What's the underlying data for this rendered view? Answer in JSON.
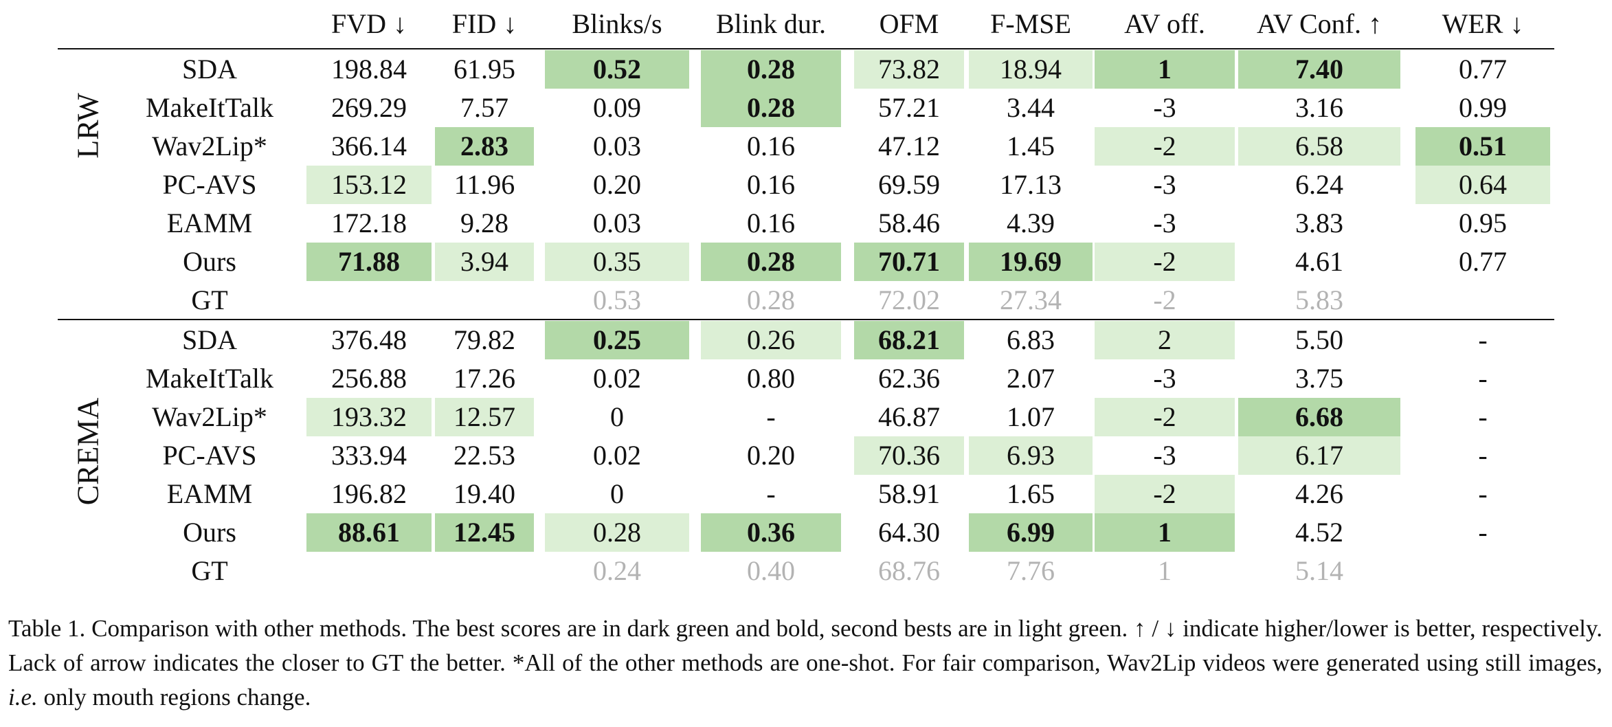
{
  "table": {
    "headers": [
      "",
      "FVD ↓",
      "FID ↓",
      "Blinks/s",
      "Blink dur.",
      "OFM",
      "F-MSE",
      "AV off.",
      "AV Conf. ↑",
      "WER ↓"
    ],
    "groups": [
      {
        "name": "LRW",
        "rows": [
          {
            "method": "SDA",
            "cells": [
              {
                "v": "198.84",
                "h": ""
              },
              {
                "v": "61.95",
                "h": ""
              },
              {
                "v": "0.52",
                "h": "best"
              },
              {
                "v": "0.28",
                "h": "best"
              },
              {
                "v": "73.82",
                "h": "second"
              },
              {
                "v": "18.94",
                "h": "second"
              },
              {
                "v": "1",
                "h": "best"
              },
              {
                "v": "7.40",
                "h": "best"
              },
              {
                "v": "0.77",
                "h": ""
              }
            ]
          },
          {
            "method": "MakeItTalk",
            "cells": [
              {
                "v": "269.29",
                "h": ""
              },
              {
                "v": "7.57",
                "h": ""
              },
              {
                "v": "0.09",
                "h": ""
              },
              {
                "v": "0.28",
                "h": "best"
              },
              {
                "v": "57.21",
                "h": ""
              },
              {
                "v": "3.44",
                "h": ""
              },
              {
                "v": "-3",
                "h": ""
              },
              {
                "v": "3.16",
                "h": ""
              },
              {
                "v": "0.99",
                "h": ""
              }
            ]
          },
          {
            "method": "Wav2Lip*",
            "cells": [
              {
                "v": "366.14",
                "h": ""
              },
              {
                "v": "2.83",
                "h": "best"
              },
              {
                "v": "0.03",
                "h": ""
              },
              {
                "v": "0.16",
                "h": ""
              },
              {
                "v": "47.12",
                "h": ""
              },
              {
                "v": "1.45",
                "h": ""
              },
              {
                "v": "-2",
                "h": "second"
              },
              {
                "v": "6.58",
                "h": "second"
              },
              {
                "v": "0.51",
                "h": "best"
              }
            ]
          },
          {
            "method": "PC-AVS",
            "cells": [
              {
                "v": "153.12",
                "h": "second"
              },
              {
                "v": "11.96",
                "h": ""
              },
              {
                "v": "0.20",
                "h": ""
              },
              {
                "v": "0.16",
                "h": ""
              },
              {
                "v": "69.59",
                "h": ""
              },
              {
                "v": "17.13",
                "h": ""
              },
              {
                "v": "-3",
                "h": ""
              },
              {
                "v": "6.24",
                "h": ""
              },
              {
                "v": "0.64",
                "h": "second"
              }
            ]
          },
          {
            "method": "EAMM",
            "cells": [
              {
                "v": "172.18",
                "h": ""
              },
              {
                "v": "9.28",
                "h": ""
              },
              {
                "v": "0.03",
                "h": ""
              },
              {
                "v": "0.16",
                "h": ""
              },
              {
                "v": "58.46",
                "h": ""
              },
              {
                "v": "4.39",
                "h": ""
              },
              {
                "v": "-3",
                "h": ""
              },
              {
                "v": "3.83",
                "h": ""
              },
              {
                "v": "0.95",
                "h": ""
              }
            ]
          },
          {
            "method": "Ours",
            "cells": [
              {
                "v": "71.88",
                "h": "best"
              },
              {
                "v": "3.94",
                "h": "second"
              },
              {
                "v": "0.35",
                "h": "second"
              },
              {
                "v": "0.28",
                "h": "best"
              },
              {
                "v": "70.71",
                "h": "best"
              },
              {
                "v": "19.69",
                "h": "best"
              },
              {
                "v": "-2",
                "h": "second"
              },
              {
                "v": "4.61",
                "h": ""
              },
              {
                "v": "0.77",
                "h": ""
              }
            ]
          },
          {
            "method": "GT",
            "gt": true,
            "cells": [
              {
                "v": "",
                "h": ""
              },
              {
                "v": "",
                "h": ""
              },
              {
                "v": "0.53",
                "h": ""
              },
              {
                "v": "0.28",
                "h": ""
              },
              {
                "v": "72.02",
                "h": ""
              },
              {
                "v": "27.34",
                "h": ""
              },
              {
                "v": "-2",
                "h": ""
              },
              {
                "v": "5.83",
                "h": ""
              },
              {
                "v": "",
                "h": ""
              }
            ]
          }
        ]
      },
      {
        "name": "CREMA",
        "rows": [
          {
            "method": "SDA",
            "cells": [
              {
                "v": "376.48",
                "h": ""
              },
              {
                "v": "79.82",
                "h": ""
              },
              {
                "v": "0.25",
                "h": "best"
              },
              {
                "v": "0.26",
                "h": "second"
              },
              {
                "v": "68.21",
                "h": "best"
              },
              {
                "v": "6.83",
                "h": ""
              },
              {
                "v": "2",
                "h": "second"
              },
              {
                "v": "5.50",
                "h": ""
              },
              {
                "v": "-",
                "h": ""
              }
            ]
          },
          {
            "method": "MakeItTalk",
            "cells": [
              {
                "v": "256.88",
                "h": ""
              },
              {
                "v": "17.26",
                "h": ""
              },
              {
                "v": "0.02",
                "h": ""
              },
              {
                "v": "0.80",
                "h": ""
              },
              {
                "v": "62.36",
                "h": ""
              },
              {
                "v": "2.07",
                "h": ""
              },
              {
                "v": "-3",
                "h": ""
              },
              {
                "v": "3.75",
                "h": ""
              },
              {
                "v": "-",
                "h": ""
              }
            ]
          },
          {
            "method": "Wav2Lip*",
            "cells": [
              {
                "v": "193.32",
                "h": "second"
              },
              {
                "v": "12.57",
                "h": "second"
              },
              {
                "v": "0",
                "h": ""
              },
              {
                "v": "-",
                "h": ""
              },
              {
                "v": "46.87",
                "h": ""
              },
              {
                "v": "1.07",
                "h": ""
              },
              {
                "v": "-2",
                "h": "second"
              },
              {
                "v": "6.68",
                "h": "best"
              },
              {
                "v": "-",
                "h": ""
              }
            ]
          },
          {
            "method": "PC-AVS",
            "cells": [
              {
                "v": "333.94",
                "h": ""
              },
              {
                "v": "22.53",
                "h": ""
              },
              {
                "v": "0.02",
                "h": ""
              },
              {
                "v": "0.20",
                "h": ""
              },
              {
                "v": "70.36",
                "h": "second"
              },
              {
                "v": "6.93",
                "h": "second"
              },
              {
                "v": "-3",
                "h": ""
              },
              {
                "v": "6.17",
                "h": "second"
              },
              {
                "v": "-",
                "h": ""
              }
            ]
          },
          {
            "method": "EAMM",
            "cells": [
              {
                "v": "196.82",
                "h": ""
              },
              {
                "v": "19.40",
                "h": ""
              },
              {
                "v": "0",
                "h": ""
              },
              {
                "v": "-",
                "h": ""
              },
              {
                "v": "58.91",
                "h": ""
              },
              {
                "v": "1.65",
                "h": ""
              },
              {
                "v": "-2",
                "h": "second"
              },
              {
                "v": "4.26",
                "h": ""
              },
              {
                "v": "-",
                "h": ""
              }
            ]
          },
          {
            "method": "Ours",
            "cells": [
              {
                "v": "88.61",
                "h": "best"
              },
              {
                "v": "12.45",
                "h": "best"
              },
              {
                "v": "0.28",
                "h": "second"
              },
              {
                "v": "0.36",
                "h": "best"
              },
              {
                "v": "64.30",
                "h": ""
              },
              {
                "v": "6.99",
                "h": "best"
              },
              {
                "v": "1",
                "h": "best"
              },
              {
                "v": "4.52",
                "h": ""
              },
              {
                "v": "-",
                "h": ""
              }
            ]
          },
          {
            "method": "GT",
            "gt": true,
            "cells": [
              {
                "v": "",
                "h": ""
              },
              {
                "v": "",
                "h": ""
              },
              {
                "v": "0.24",
                "h": ""
              },
              {
                "v": "0.40",
                "h": ""
              },
              {
                "v": "68.76",
                "h": ""
              },
              {
                "v": "7.76",
                "h": ""
              },
              {
                "v": "1",
                "h": ""
              },
              {
                "v": "5.14",
                "h": ""
              },
              {
                "v": "",
                "h": ""
              }
            ]
          }
        ]
      }
    ],
    "colors": {
      "best": "#b3d9a8",
      "second": "#dcefd5",
      "gt_text": "#b3b3b3"
    }
  },
  "caption": {
    "label": "Table 1.",
    "text_1": "Comparison with other methods. The best scores are in dark green and bold, second bests are in light green. ↑ / ↓ indicate higher/lower is better, respectively. Lack of arrow indicates the closer to GT the better. *All of the other methods are one-shot. For fair comparison, Wav2Lip videos were generated using still images,",
    "ie": "i.e.",
    "text_2": "only mouth regions change."
  }
}
